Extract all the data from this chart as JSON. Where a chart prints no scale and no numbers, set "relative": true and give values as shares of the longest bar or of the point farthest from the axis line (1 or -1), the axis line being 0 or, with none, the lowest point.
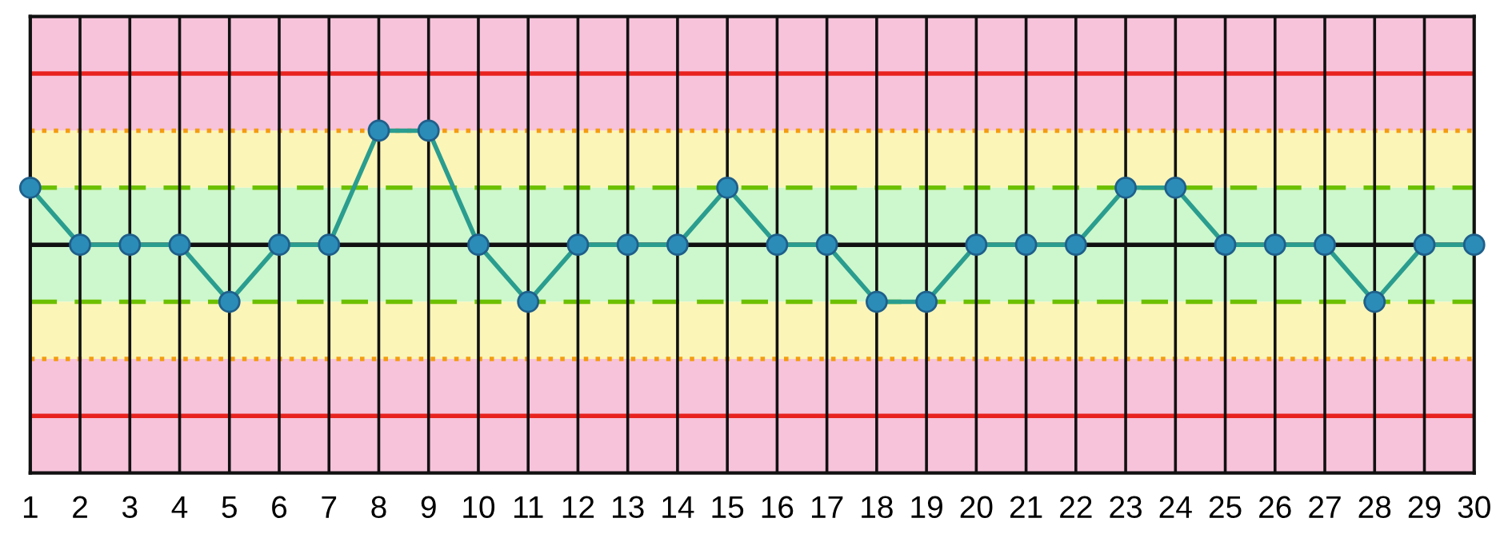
{
  "chart_data": {
    "type": "line",
    "relative": true,
    "marker": "circle",
    "line_style": "solid",
    "grid": "x",
    "tick_labels": "x",
    "categories": [
      "1",
      "2",
      "3",
      "4",
      "5",
      "6",
      "7",
      "8",
      "9",
      "10",
      "11",
      "12",
      "13",
      "14",
      "15",
      "16",
      "17",
      "18",
      "19",
      "20",
      "21",
      "22",
      "23",
      "24",
      "25",
      "26",
      "27",
      "28",
      "29",
      "30"
    ],
    "series": [
      {
        "color": "#2a9d8f",
        "values": [
          0.6667,
          0.3333,
          0.3333,
          0.3333,
          0,
          0.3333,
          0.3333,
          1,
          1,
          0.3333,
          0,
          0.3333,
          0.3333,
          0.3333,
          0.6667,
          0.3333,
          0.3333,
          0,
          0,
          0.3333,
          0.3333,
          0.3333,
          0.6667,
          0.6667,
          0.3333,
          0.3333,
          0.3333,
          0,
          0.3333,
          0.3333
        ]
      }
    ],
    "bands": [
      {
        "axis": "y",
        "from": 1,
        "to": 1.6667,
        "color": "#f7c3da"
      },
      {
        "axis": "y",
        "from": 0.6667,
        "to": 1,
        "color": "#fbf5b8"
      },
      {
        "axis": "y",
        "from": 0,
        "to": 0.6667,
        "color": "#cdf7cc"
      },
      {
        "axis": "y",
        "from": -0.3333,
        "to": 0,
        "color": "#fbf5b8"
      },
      {
        "axis": "y",
        "from": -1,
        "to": -0.3333,
        "color": "#f7c3da"
      }
    ],
    "ref_lines": [
      {
        "axis": "y",
        "value": 1.3333,
        "color": "#e8231f",
        "line_style": "solid"
      },
      {
        "axis": "y",
        "value": 1,
        "color": "#f39c12",
        "line_style": "dotted"
      },
      {
        "axis": "y",
        "value": 0.6667,
        "color": "#6cc000",
        "line_style": "dashed"
      },
      {
        "axis": "y",
        "value": 0.3333,
        "color": "#111111",
        "line_style": "solid"
      },
      {
        "axis": "y",
        "value": 0,
        "color": "#6cc000",
        "line_style": "dashed"
      },
      {
        "axis": "y",
        "value": -0.3333,
        "color": "#f39c12",
        "line_style": "dotted"
      },
      {
        "axis": "y",
        "value": -0.6667,
        "color": "#e8231f",
        "line_style": "solid"
      }
    ]
  }
}
